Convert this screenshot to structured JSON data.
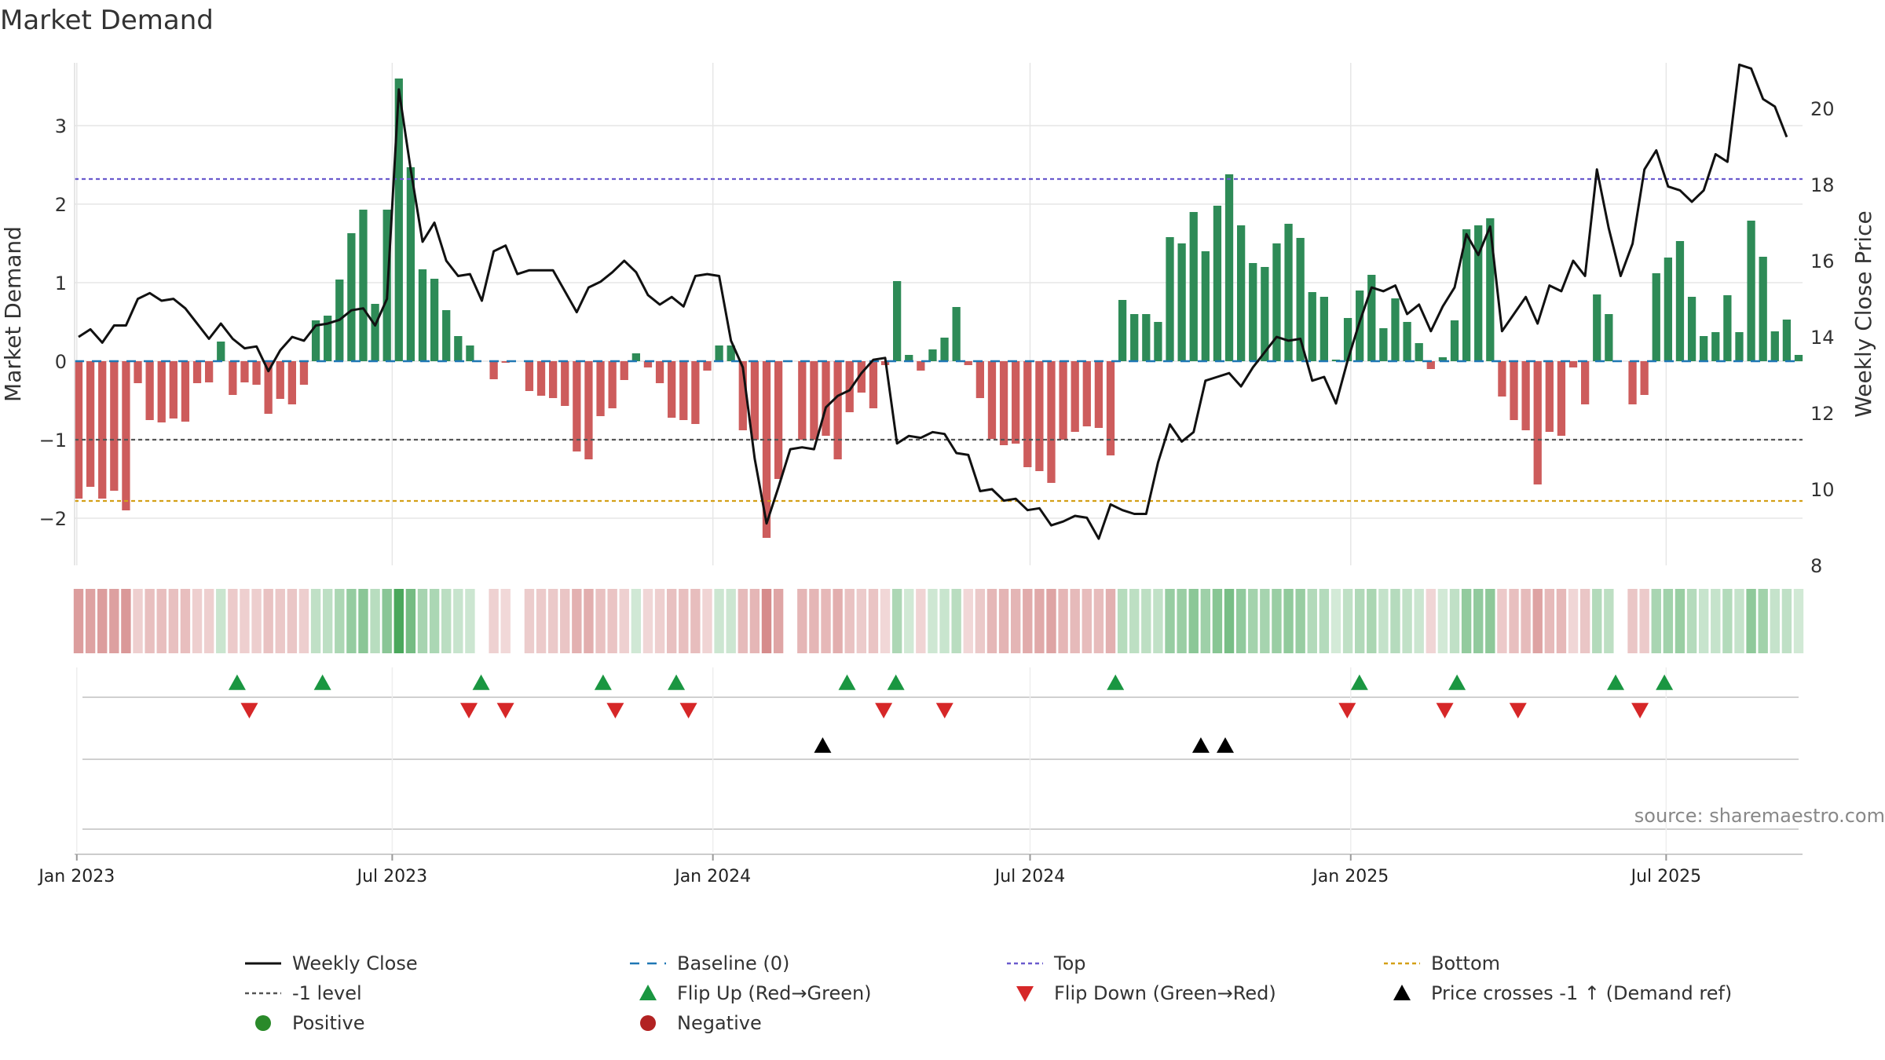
{
  "title": "Market Demand",
  "source": "source: sharemaestro.com",
  "colors": {
    "positive": "#2e8b57",
    "negative": "#cd5c5c",
    "close": "#111111",
    "baseline": "#1f77b4",
    "top": "#6a5acd",
    "bottom": "#d4a017",
    "minus_one": "#555555",
    "flip_up": "#1a9641",
    "flip_down": "#d62728",
    "cross": "#000000",
    "grid": "#e6e6e6"
  },
  "chart_data": {
    "type": "bar+line",
    "title": "Market Demand",
    "ylabel_left": "Market Demand",
    "ylabel_right": "Weekly Close Price",
    "ylim_left": [
      -2.6,
      3.8
    ],
    "ylim_right": [
      8,
      21.2
    ],
    "yticks_left": [
      -2,
      -1,
      0,
      1,
      2,
      3
    ],
    "yticks_right": [
      8,
      10,
      12,
      14,
      16,
      18,
      20
    ],
    "levels": {
      "top": 2.32,
      "bottom": -1.78,
      "minus_one": -1.0,
      "baseline": 0
    },
    "x_start": "2023-01-02",
    "x_end": "2025-09-15",
    "xticks": [
      {
        "date": "2023-01-01",
        "label": "Jan 2023"
      },
      {
        "date": "2023-07-01",
        "label": "Jul 2023"
      },
      {
        "date": "2024-01-01",
        "label": "Jan 2024"
      },
      {
        "date": "2024-07-01",
        "label": "Jul 2024"
      },
      {
        "date": "2025-01-01",
        "label": "Jan 2025"
      },
      {
        "date": "2025-07-01",
        "label": "Jul 2025"
      }
    ],
    "series": [
      {
        "name": "Market Demand",
        "type": "bar",
        "values": [
          -1.75,
          -1.6,
          -1.75,
          -1.65,
          -1.9,
          -0.28,
          -0.75,
          -0.78,
          -0.73,
          -0.77,
          -0.28,
          -0.27,
          0.25,
          -0.43,
          -0.27,
          -0.3,
          -0.67,
          -0.48,
          -0.55,
          -0.3,
          0.52,
          0.58,
          1.04,
          1.63,
          1.93,
          0.73,
          1.93,
          3.6,
          2.47,
          1.17,
          1.05,
          0.65,
          0.32,
          0.2,
          0.0,
          -0.23,
          -0.02,
          0.0,
          -0.38,
          -0.44,
          -0.47,
          -0.57,
          -1.15,
          -1.25,
          -0.7,
          -0.6,
          -0.24,
          0.1,
          -0.08,
          -0.28,
          -0.72,
          -0.75,
          -0.8,
          -0.12,
          0.2,
          0.2,
          -0.88,
          -1.0,
          -2.25,
          -1.5,
          0.0,
          -1.0,
          -1.0,
          -0.95,
          -1.25,
          -0.65,
          -0.4,
          -0.6,
          -0.05,
          1.02,
          0.08,
          -0.12,
          0.15,
          0.3,
          0.69,
          -0.05,
          -0.47,
          -0.99,
          -1.07,
          -1.05,
          -1.35,
          -1.4,
          -1.55,
          -1.0,
          -0.9,
          -0.83,
          -0.85,
          -1.2,
          0.78,
          0.6,
          0.6,
          0.5,
          1.58,
          1.5,
          1.9,
          1.4,
          1.98,
          2.38,
          1.73,
          1.25,
          1.2,
          1.5,
          1.75,
          1.57,
          0.88,
          0.82,
          0.02,
          0.55,
          0.9,
          1.1,
          0.42,
          0.8,
          0.5,
          0.23,
          -0.1,
          0.05,
          0.52,
          1.68,
          1.73,
          1.82,
          -0.45,
          -0.75,
          -0.88,
          -1.57,
          -0.9,
          -0.95,
          -0.08,
          -0.55,
          0.85,
          0.6,
          0.0,
          -0.55,
          -0.43,
          1.12,
          1.32,
          1.53,
          0.82,
          0.32,
          0.37,
          0.84,
          0.37,
          1.79,
          1.33,
          0.38,
          0.53,
          0.08
        ]
      },
      {
        "name": "Weekly Close",
        "type": "line",
        "axis": "right",
        "values": [
          14.0,
          14.2,
          13.85,
          14.3,
          14.3,
          15.0,
          15.15,
          14.95,
          15.0,
          14.75,
          14.35,
          13.95,
          14.35,
          13.95,
          13.7,
          13.75,
          13.1,
          13.65,
          14.0,
          13.9,
          14.3,
          14.35,
          14.45,
          14.7,
          14.75,
          14.3,
          15.0,
          20.5,
          18.4,
          16.5,
          17.0,
          16.0,
          15.6,
          15.65,
          14.95,
          16.25,
          16.4,
          15.65,
          15.75,
          15.75,
          15.75,
          15.2,
          14.65,
          15.3,
          15.45,
          15.7,
          16.0,
          15.7,
          15.1,
          14.85,
          15.05,
          14.8,
          15.6,
          15.65,
          15.6,
          13.9,
          13.2,
          10.8,
          9.1,
          10.05,
          11.05,
          11.1,
          11.05,
          12.15,
          12.45,
          12.6,
          13.05,
          13.4,
          13.45,
          11.2,
          11.4,
          11.35,
          11.5,
          11.45,
          10.95,
          10.9,
          9.95,
          10.0,
          9.7,
          9.75,
          9.45,
          9.5,
          9.05,
          9.15,
          9.3,
          9.25,
          8.7,
          9.6,
          9.45,
          9.35,
          9.35,
          10.7,
          11.7,
          11.25,
          11.5,
          12.85,
          12.95,
          13.05,
          12.7,
          13.2,
          13.6,
          14.0,
          13.9,
          13.95,
          12.85,
          12.95,
          12.25,
          13.4,
          14.4,
          15.3,
          15.2,
          15.35,
          14.6,
          14.85,
          14.15,
          14.8,
          15.3,
          16.7,
          16.15,
          16.9,
          14.15,
          14.6,
          15.05,
          14.35,
          15.35,
          15.2,
          16.0,
          15.6,
          18.4,
          16.85,
          15.6,
          16.45,
          18.4,
          18.9,
          17.95,
          17.85,
          17.55,
          17.85,
          18.8,
          18.6,
          21.15,
          21.05,
          20.25,
          20.05,
          19.25
        ]
      }
    ],
    "signals": {
      "flip_up": [
        "2023-04-03",
        "2023-05-22",
        "2023-08-21",
        "2023-10-30",
        "2023-12-11",
        "2024-03-18",
        "2024-04-15",
        "2024-08-19",
        "2025-01-06",
        "2025-03-03",
        "2025-06-02",
        "2025-06-30"
      ],
      "flip_down": [
        "2023-04-10",
        "2023-08-14",
        "2023-09-04",
        "2023-11-06",
        "2023-12-18",
        "2024-04-08",
        "2024-05-13",
        "2024-12-30",
        "2025-02-24",
        "2025-04-07",
        "2025-06-16"
      ],
      "price_crosses": [
        "2024-03-04",
        "2024-10-07",
        "2024-10-21"
      ]
    },
    "legend": [
      {
        "key": "close",
        "label": "Weekly Close"
      },
      {
        "key": "baseline",
        "label": "Baseline (0)"
      },
      {
        "key": "top",
        "label": "Top"
      },
      {
        "key": "bottom",
        "label": "Bottom"
      },
      {
        "key": "minus_one",
        "label": "-1 level"
      },
      {
        "key": "flip_up",
        "label": "Flip Up (Red→Green)"
      },
      {
        "key": "flip_down",
        "label": "Flip Down (Green→Red)"
      },
      {
        "key": "cross",
        "label": "Price crosses -1 ↑ (Demand ref)"
      },
      {
        "key": "positive",
        "label": "Positive"
      },
      {
        "key": "negative",
        "label": "Negative"
      }
    ]
  }
}
